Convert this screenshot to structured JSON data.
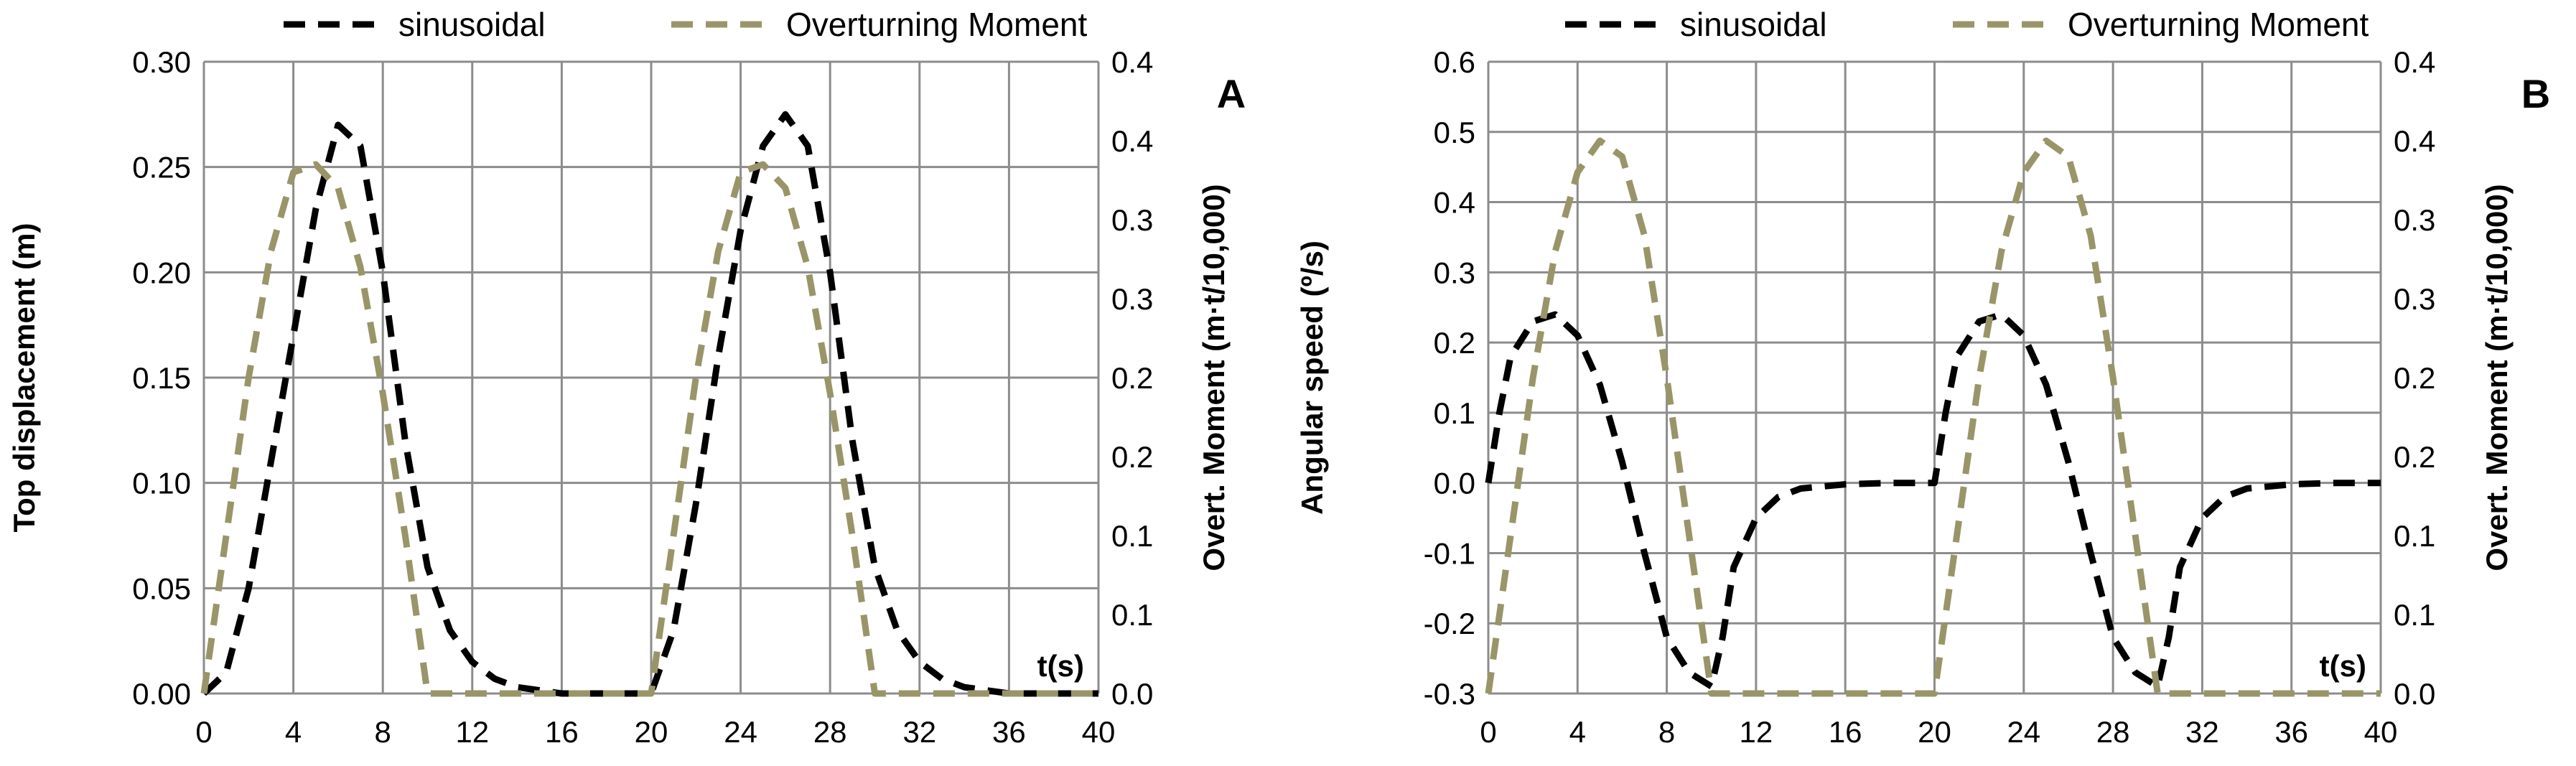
{
  "colors": {
    "sinusoidal": "#000000",
    "overturning": "#9a9569",
    "grid": "#8c8c8c"
  },
  "legend": {
    "series1": "sinusoidal",
    "series2": "Overturning Moment"
  },
  "chart_data": [
    {
      "type": "line",
      "panel_label": "A",
      "ylabel": "Top displacement (m)",
      "ylabel2": "Overt. Moment (m·t/10,000)",
      "xlabel": "t(s)",
      "xlim": [
        0,
        40
      ],
      "ylim": [
        0,
        0.3
      ],
      "ylim2": [
        0,
        0.4
      ],
      "xticks": [
        "0",
        "4",
        "8",
        "12",
        "16",
        "20",
        "24",
        "28",
        "32",
        "36",
        "40"
      ],
      "yticks": [
        "0.00",
        "0.05",
        "0.10",
        "0.15",
        "0.20",
        "0.25",
        "0.30"
      ],
      "y2ticks": [
        "0.0",
        "0.1",
        "0.1",
        "0.2",
        "0.2",
        "0.3",
        "0.3",
        "0.4",
        "0.4"
      ],
      "grid": true,
      "legend_position": "top",
      "series": [
        {
          "name": "sinusoidal",
          "axis": "left",
          "style": "dashed",
          "x": [
            0,
            1,
            2,
            3,
            4,
            5,
            6,
            7,
            8,
            9,
            10,
            11,
            12,
            13,
            14,
            16,
            18,
            20,
            21,
            22,
            23,
            24,
            25,
            26,
            27,
            28,
            29,
            30,
            31,
            32,
            33,
            34,
            36,
            38,
            40
          ],
          "y": [
            0,
            0.01,
            0.05,
            0.11,
            0.17,
            0.23,
            0.27,
            0.26,
            0.2,
            0.12,
            0.06,
            0.03,
            0.015,
            0.007,
            0.003,
            0,
            0,
            0,
            0.03,
            0.09,
            0.16,
            0.22,
            0.26,
            0.275,
            0.26,
            0.2,
            0.12,
            0.06,
            0.03,
            0.015,
            0.007,
            0.003,
            0,
            0,
            0
          ]
        },
        {
          "name": "Overturning Moment",
          "axis": "right",
          "style": "dashed",
          "x": [
            0,
            1,
            2,
            3,
            4,
            5,
            6,
            7,
            8,
            9,
            10,
            11,
            12,
            14,
            16,
            18,
            20,
            21,
            22,
            23,
            24,
            25,
            26,
            27,
            28,
            29,
            30,
            31,
            32,
            34,
            36,
            38,
            40
          ],
          "y": [
            0,
            0.1,
            0.2,
            0.28,
            0.33,
            0.335,
            0.32,
            0.27,
            0.19,
            0.1,
            0,
            0,
            0,
            0,
            0,
            0,
            0,
            0.1,
            0.2,
            0.28,
            0.33,
            0.335,
            0.32,
            0.27,
            0.19,
            0.1,
            0,
            0,
            0,
            0,
            0,
            0,
            0
          ]
        }
      ]
    },
    {
      "type": "line",
      "panel_label": "B",
      "ylabel": "Angular speed (º/s)",
      "ylabel2": "Overt. Moment (m·t/10,000)",
      "xlabel": "t(s)",
      "xlim": [
        0,
        40
      ],
      "ylim": [
        -0.3,
        0.6
      ],
      "ylim2": [
        0,
        0.4
      ],
      "xticks": [
        "0",
        "4",
        "8",
        "12",
        "16",
        "20",
        "24",
        "28",
        "32",
        "36",
        "40"
      ],
      "yticks": [
        "-0.3",
        "-0.2",
        "-0.1",
        "0.0",
        "0.1",
        "0.2",
        "0.3",
        "0.4",
        "0.5",
        "0.6"
      ],
      "y2ticks": [
        "0.0",
        "0.1",
        "0.1",
        "0.2",
        "0.2",
        "0.3",
        "0.3",
        "0.4",
        "0.4"
      ],
      "grid": true,
      "legend_position": "top",
      "series": [
        {
          "name": "sinusoidal",
          "axis": "left",
          "style": "dashed",
          "x": [
            0,
            0.5,
            1,
            2,
            3,
            4,
            5,
            6,
            7,
            8,
            9,
            10,
            10.5,
            11,
            12,
            13,
            14,
            16,
            18,
            20,
            20.5,
            21,
            22,
            23,
            24,
            25,
            26,
            27,
            28,
            29,
            30,
            30.5,
            31,
            32,
            33,
            34,
            36,
            38,
            40
          ],
          "y": [
            0,
            0.1,
            0.18,
            0.23,
            0.24,
            0.21,
            0.14,
            0.03,
            -0.1,
            -0.22,
            -0.27,
            -0.29,
            -0.22,
            -0.12,
            -0.05,
            -0.02,
            -0.008,
            -0.002,
            0,
            0,
            0.1,
            0.18,
            0.23,
            0.24,
            0.21,
            0.14,
            0.03,
            -0.1,
            -0.22,
            -0.27,
            -0.29,
            -0.22,
            -0.12,
            -0.05,
            -0.02,
            -0.008,
            -0.002,
            0,
            0
          ]
        },
        {
          "name": "Overturning Moment",
          "axis": "right",
          "style": "dashed",
          "x": [
            0,
            1,
            2,
            3,
            4,
            5,
            6,
            7,
            8,
            9,
            10,
            11,
            12,
            14,
            16,
            18,
            20,
            21,
            22,
            23,
            24,
            25,
            26,
            27,
            28,
            29,
            30,
            31,
            32,
            34,
            36,
            38,
            40
          ],
          "y": [
            0,
            0.1,
            0.2,
            0.28,
            0.33,
            0.35,
            0.34,
            0.29,
            0.2,
            0.1,
            0,
            0,
            0,
            0,
            0,
            0,
            0,
            0.1,
            0.2,
            0.28,
            0.33,
            0.35,
            0.34,
            0.29,
            0.2,
            0.1,
            0,
            0,
            0,
            0,
            0,
            0,
            0
          ]
        }
      ]
    }
  ]
}
